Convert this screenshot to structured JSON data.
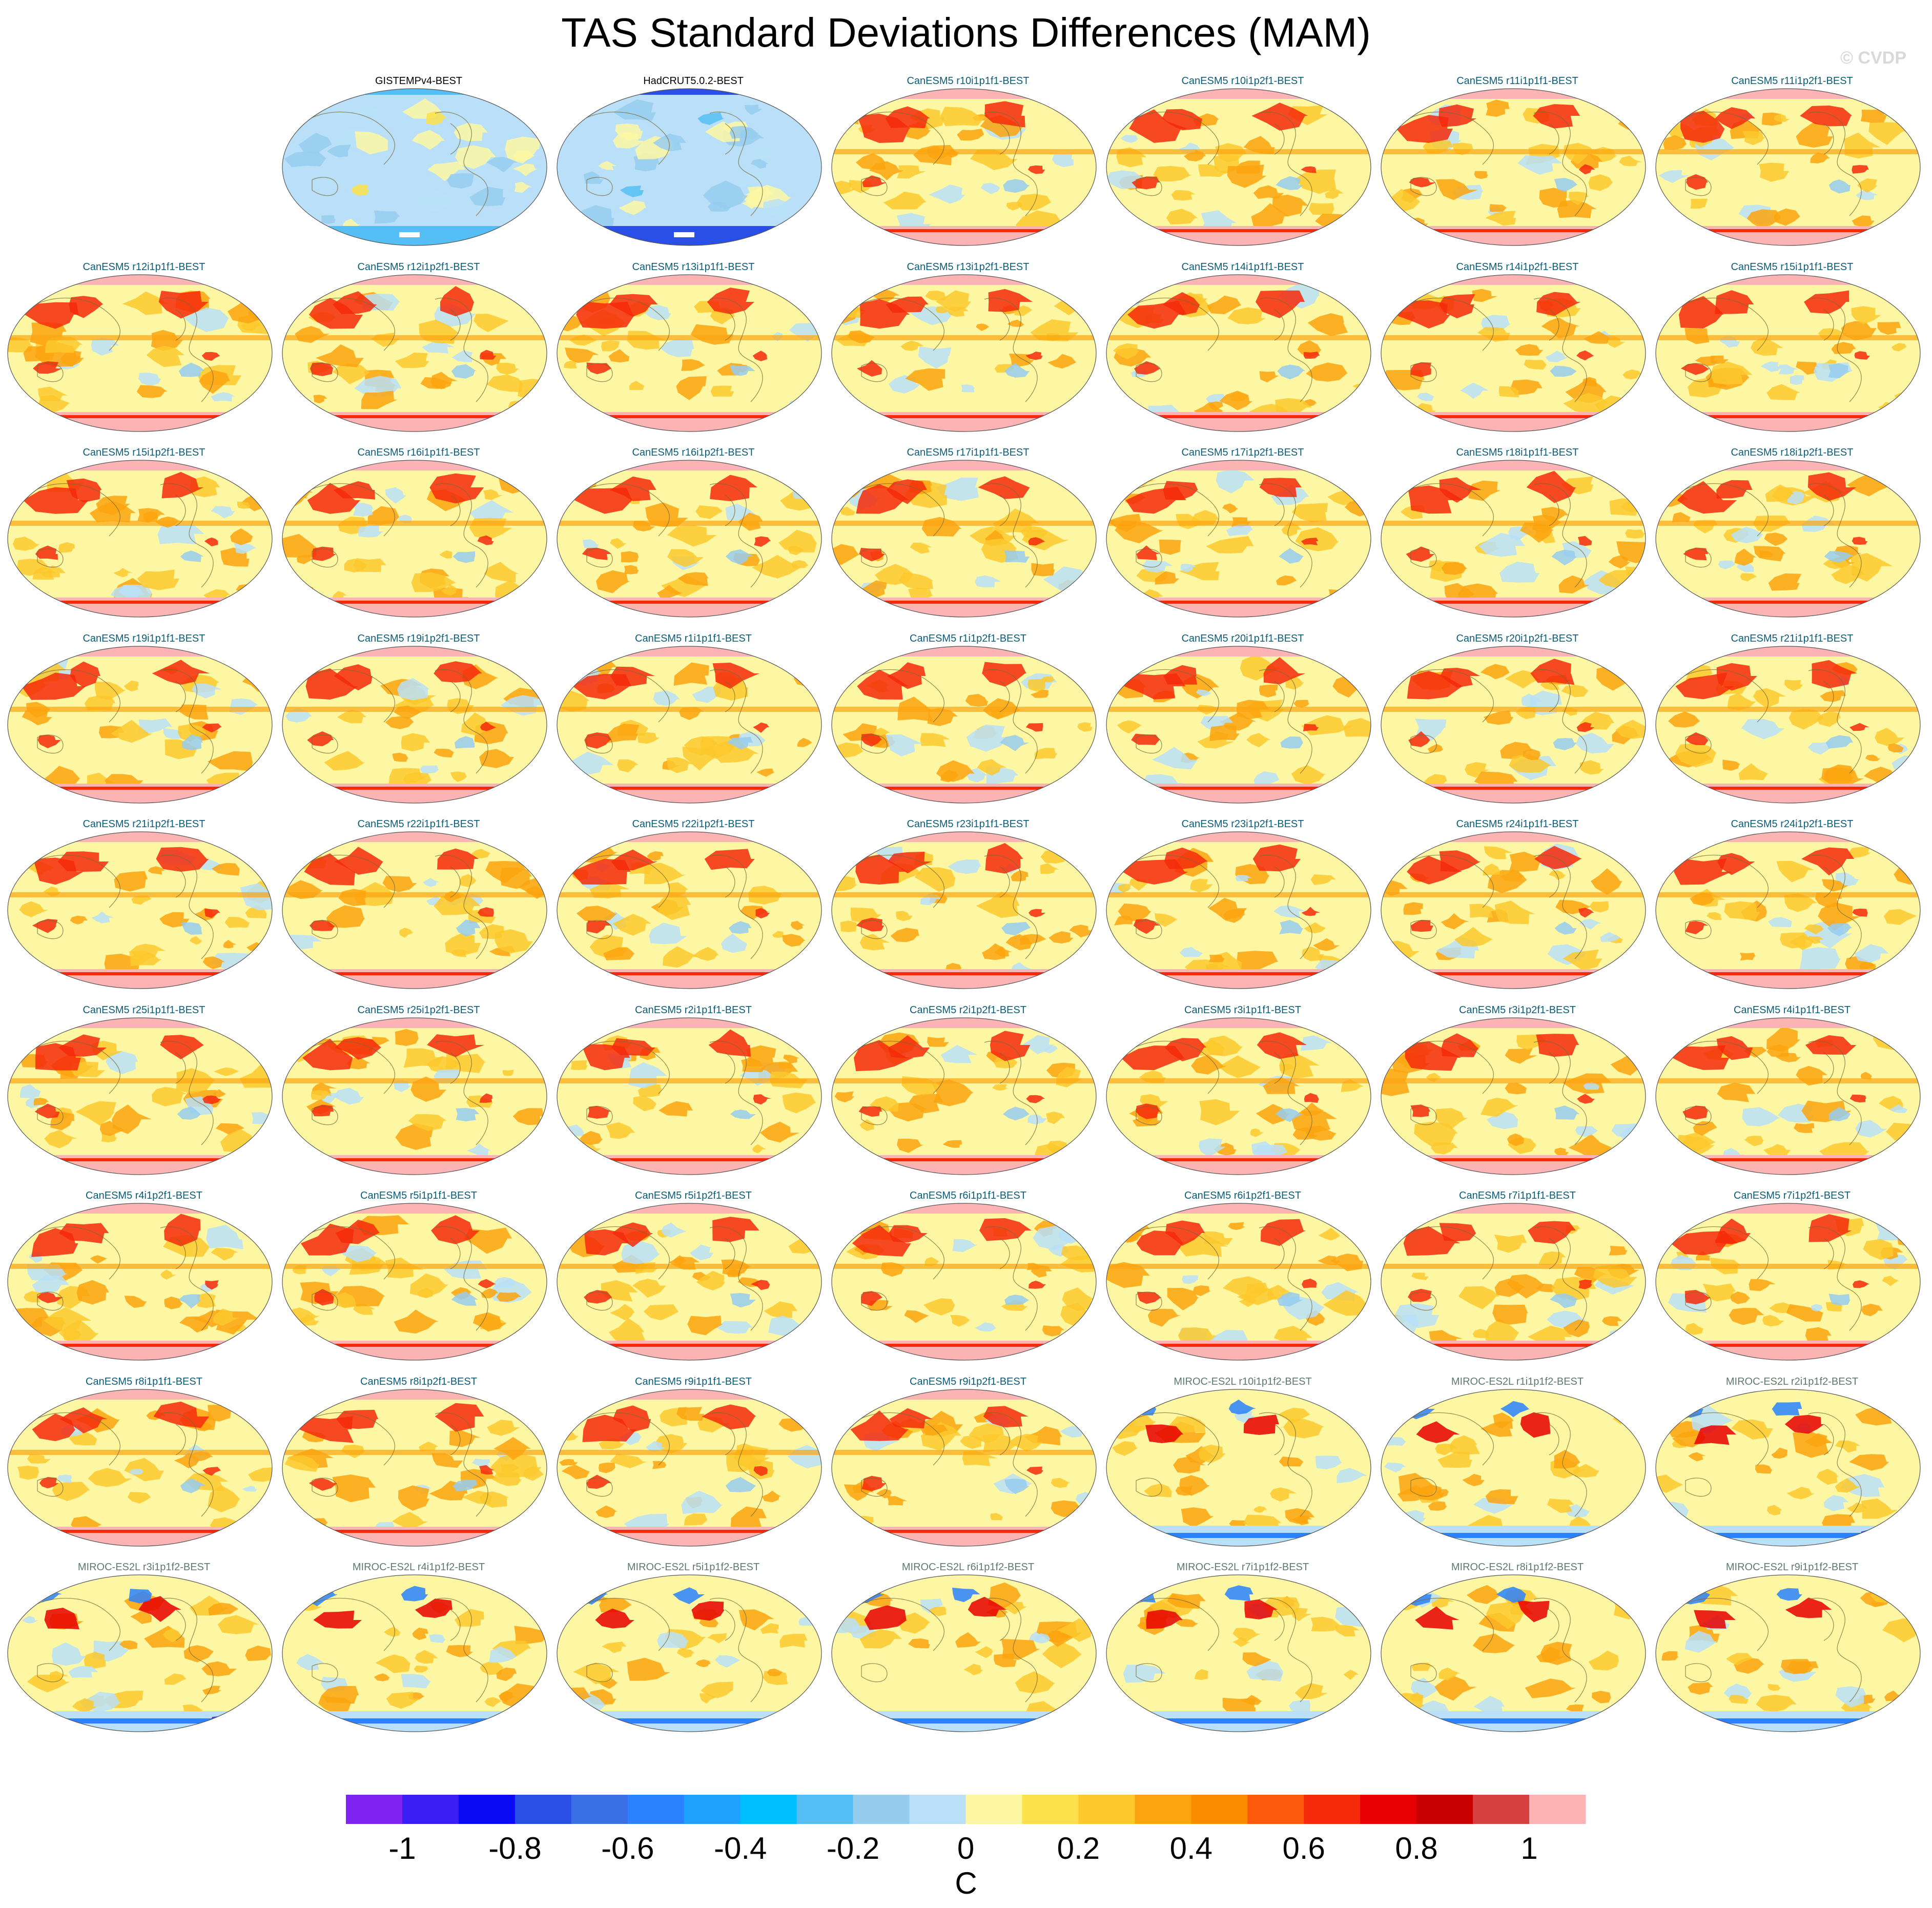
{
  "title": "TAS Standard Deviations Differences (MAM)",
  "copyright": "© CVDP",
  "panels": [
    {
      "label": "GISTEMPv4-BEST",
      "group": "obs",
      "style": "cool"
    },
    {
      "label": "HadCRUT5.0.2-BEST",
      "group": "obs",
      "style": "cooler"
    },
    {
      "label": "CanESM5 r10i1p1f1-BEST",
      "group": "canesm",
      "style": "warm"
    },
    {
      "label": "CanESM5 r10i1p2f1-BEST",
      "group": "canesm",
      "style": "warm"
    },
    {
      "label": "CanESM5 r11i1p1f1-BEST",
      "group": "canesm",
      "style": "warm"
    },
    {
      "label": "CanESM5 r11i1p2f1-BEST",
      "group": "canesm",
      "style": "warm"
    },
    {
      "label": "CanESM5 r12i1p1f1-BEST",
      "group": "canesm",
      "style": "warm"
    },
    {
      "label": "CanESM5 r12i1p2f1-BEST",
      "group": "canesm",
      "style": "warm"
    },
    {
      "label": "CanESM5 r13i1p1f1-BEST",
      "group": "canesm",
      "style": "warm"
    },
    {
      "label": "CanESM5 r13i1p2f1-BEST",
      "group": "canesm",
      "style": "warm"
    },
    {
      "label": "CanESM5 r14i1p1f1-BEST",
      "group": "canesm",
      "style": "warm"
    },
    {
      "label": "CanESM5 r14i1p2f1-BEST",
      "group": "canesm",
      "style": "warm"
    },
    {
      "label": "CanESM5 r15i1p1f1-BEST",
      "group": "canesm",
      "style": "warm"
    },
    {
      "label": "CanESM5 r15i1p2f1-BEST",
      "group": "canesm",
      "style": "warm"
    },
    {
      "label": "CanESM5 r16i1p1f1-BEST",
      "group": "canesm",
      "style": "warm"
    },
    {
      "label": "CanESM5 r16i1p2f1-BEST",
      "group": "canesm",
      "style": "warm"
    },
    {
      "label": "CanESM5 r17i1p1f1-BEST",
      "group": "canesm",
      "style": "warm"
    },
    {
      "label": "CanESM5 r17i1p2f1-BEST",
      "group": "canesm",
      "style": "warm"
    },
    {
      "label": "CanESM5 r18i1p1f1-BEST",
      "group": "canesm",
      "style": "warm"
    },
    {
      "label": "CanESM5 r18i1p2f1-BEST",
      "group": "canesm",
      "style": "warm"
    },
    {
      "label": "CanESM5 r19i1p1f1-BEST",
      "group": "canesm",
      "style": "warm"
    },
    {
      "label": "CanESM5 r19i1p2f1-BEST",
      "group": "canesm",
      "style": "warm"
    },
    {
      "label": "CanESM5 r1i1p1f1-BEST",
      "group": "canesm",
      "style": "warm"
    },
    {
      "label": "CanESM5 r1i1p2f1-BEST",
      "group": "canesm",
      "style": "warm"
    },
    {
      "label": "CanESM5 r20i1p1f1-BEST",
      "group": "canesm",
      "style": "warm"
    },
    {
      "label": "CanESM5 r20i1p2f1-BEST",
      "group": "canesm",
      "style": "warm"
    },
    {
      "label": "CanESM5 r21i1p1f1-BEST",
      "group": "canesm",
      "style": "warm"
    },
    {
      "label": "CanESM5 r21i1p2f1-BEST",
      "group": "canesm",
      "style": "warm"
    },
    {
      "label": "CanESM5 r22i1p1f1-BEST",
      "group": "canesm",
      "style": "warm"
    },
    {
      "label": "CanESM5 r22i1p2f1-BEST",
      "group": "canesm",
      "style": "warm"
    },
    {
      "label": "CanESM5 r23i1p1f1-BEST",
      "group": "canesm",
      "style": "warm"
    },
    {
      "label": "CanESM5 r23i1p2f1-BEST",
      "group": "canesm",
      "style": "warm"
    },
    {
      "label": "CanESM5 r24i1p1f1-BEST",
      "group": "canesm",
      "style": "warm"
    },
    {
      "label": "CanESM5 r24i1p2f1-BEST",
      "group": "canesm",
      "style": "warm"
    },
    {
      "label": "CanESM5 r25i1p1f1-BEST",
      "group": "canesm",
      "style": "warm"
    },
    {
      "label": "CanESM5 r25i1p2f1-BEST",
      "group": "canesm",
      "style": "warm"
    },
    {
      "label": "CanESM5 r2i1p1f1-BEST",
      "group": "canesm",
      "style": "warm"
    },
    {
      "label": "CanESM5 r2i1p2f1-BEST",
      "group": "canesm",
      "style": "warm"
    },
    {
      "label": "CanESM5 r3i1p1f1-BEST",
      "group": "canesm",
      "style": "warm"
    },
    {
      "label": "CanESM5 r3i1p2f1-BEST",
      "group": "canesm",
      "style": "warm"
    },
    {
      "label": "CanESM5 r4i1p1f1-BEST",
      "group": "canesm",
      "style": "warm"
    },
    {
      "label": "CanESM5 r4i1p2f1-BEST",
      "group": "canesm",
      "style": "warm"
    },
    {
      "label": "CanESM5 r5i1p1f1-BEST",
      "group": "canesm",
      "style": "warm"
    },
    {
      "label": "CanESM5 r5i1p2f1-BEST",
      "group": "canesm",
      "style": "warm"
    },
    {
      "label": "CanESM5 r6i1p1f1-BEST",
      "group": "canesm",
      "style": "warm"
    },
    {
      "label": "CanESM5 r6i1p2f1-BEST",
      "group": "canesm",
      "style": "warm"
    },
    {
      "label": "CanESM5 r7i1p1f1-BEST",
      "group": "canesm",
      "style": "warm"
    },
    {
      "label": "CanESM5 r7i1p2f1-BEST",
      "group": "canesm",
      "style": "warm"
    },
    {
      "label": "CanESM5 r8i1p1f1-BEST",
      "group": "canesm",
      "style": "warm"
    },
    {
      "label": "CanESM5 r8i1p2f1-BEST",
      "group": "canesm",
      "style": "warm"
    },
    {
      "label": "CanESM5 r9i1p1f1-BEST",
      "group": "canesm",
      "style": "warm"
    },
    {
      "label": "CanESM5 r9i1p2f1-BEST",
      "group": "canesm",
      "style": "warm"
    },
    {
      "label": "MIROC-ES2L r10i1p1f2-BEST",
      "group": "miroc",
      "style": "mixed"
    },
    {
      "label": "MIROC-ES2L r1i1p1f2-BEST",
      "group": "miroc",
      "style": "mixed"
    },
    {
      "label": "MIROC-ES2L r2i1p1f2-BEST",
      "group": "miroc",
      "style": "mixed"
    },
    {
      "label": "MIROC-ES2L r3i1p1f2-BEST",
      "group": "miroc",
      "style": "mixed"
    },
    {
      "label": "MIROC-ES2L r4i1p1f2-BEST",
      "group": "miroc",
      "style": "mixed"
    },
    {
      "label": "MIROC-ES2L r5i1p1f2-BEST",
      "group": "miroc",
      "style": "mixed"
    },
    {
      "label": "MIROC-ES2L r6i1p1f2-BEST",
      "group": "miroc",
      "style": "mixed"
    },
    {
      "label": "MIROC-ES2L r7i1p1f2-BEST",
      "group": "miroc",
      "style": "mixed"
    },
    {
      "label": "MIROC-ES2L r8i1p1f2-BEST",
      "group": "miroc",
      "style": "mixed"
    },
    {
      "label": "MIROC-ES2L r9i1p1f2-BEST",
      "group": "miroc",
      "style": "mixed"
    }
  ],
  "colorbar": {
    "colors": [
      "#7f24f0",
      "#3a1ff4",
      "#0a0af5",
      "#2a4fe6",
      "#3a6fe6",
      "#2a82ff",
      "#1ea2ff",
      "#00bfff",
      "#55bff5",
      "#96cdee",
      "#b9e0f8",
      "#fdf7a3",
      "#fde04a",
      "#fcc92d",
      "#fca40f",
      "#fb8c00",
      "#fa5a0a",
      "#f52a0a",
      "#e60000",
      "#c80000",
      "#d84040",
      "#fbb3b3"
    ],
    "tick_values": [
      "-1",
      "-0.8",
      "-0.6",
      "-0.4",
      "-0.2",
      "0",
      "0.2",
      "0.4",
      "0.6",
      "0.8",
      "1"
    ],
    "unit": "C"
  },
  "style_palettes": {
    "warm": {
      "base": "#fdf7a3",
      "c1": "#fcc92d",
      "c2": "#fca40f",
      "c3": "#f52a0a",
      "c4": "#b9e0f8",
      "c5": "#fbb3b3",
      "accent": "#96cdee"
    },
    "mixed": {
      "base": "#fdf7a3",
      "c1": "#fcc92d",
      "c2": "#fca40f",
      "c3": "#e60000",
      "c4": "#b9e0f8",
      "c5": "#2a82ff",
      "accent": "#3a1ff4"
    },
    "cool": {
      "base": "#b9e0f8",
      "c1": "#fdf7a3",
      "c2": "#96cdee",
      "c3": "#fde04a",
      "c4": "#b9e0f8",
      "c5": "#55bff5",
      "accent": "#1ea2ff"
    },
    "cooler": {
      "base": "#b9e0f8",
      "c1": "#96cdee",
      "c2": "#fdf7a3",
      "c3": "#55bff5",
      "c4": "#b9e0f8",
      "c5": "#2a4fe6",
      "accent": "#0a0af5"
    }
  }
}
